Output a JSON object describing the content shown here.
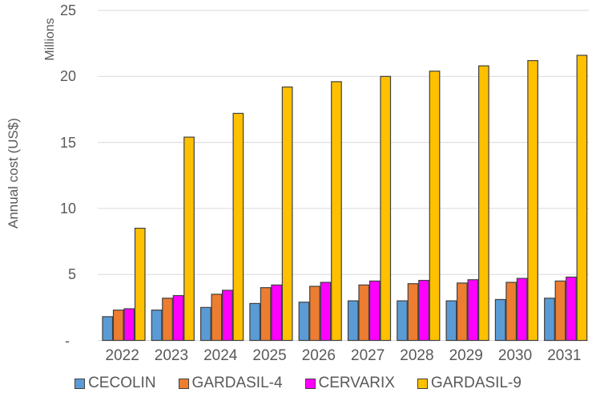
{
  "chart_data": {
    "type": "bar",
    "title": "",
    "ylabel": "Annual cost (US$)",
    "units_label": "Millions",
    "xlabel": "",
    "categories": [
      "2022",
      "2023",
      "2024",
      "2025",
      "2026",
      "2027",
      "2028",
      "2029",
      "2030",
      "2031"
    ],
    "series": [
      {
        "name": "CECOLIN",
        "color": "#5B9BD5",
        "values": [
          1.8,
          2.3,
          2.5,
          2.8,
          2.9,
          3.0,
          3.0,
          3.0,
          3.1,
          3.2
        ]
      },
      {
        "name": "GARDASIL-4",
        "color": "#ED7D31",
        "values": [
          2.3,
          3.2,
          3.5,
          4.0,
          4.1,
          4.2,
          4.3,
          4.35,
          4.4,
          4.5
        ]
      },
      {
        "name": "CERVARIX",
        "color": "#FF00FF",
        "values": [
          2.4,
          3.4,
          3.8,
          4.2,
          4.4,
          4.5,
          4.55,
          4.6,
          4.7,
          4.8
        ]
      },
      {
        "name": "GARDASIL-9",
        "color": "#FFC000",
        "values": [
          8.5,
          15.4,
          17.2,
          19.2,
          19.6,
          20.0,
          20.4,
          20.8,
          21.2,
          21.6
        ]
      }
    ],
    "y_axis": {
      "min": 0,
      "max": 25,
      "tick_interval": 5,
      "tick_labels": [
        "-",
        "5",
        "10",
        "15",
        "20",
        "25"
      ]
    },
    "grid": "horizontal",
    "legend_position": "bottom",
    "gridline_color": "#D9D9D9",
    "bar_outline_color": "#404040",
    "text_color": "#595959",
    "background_color": "#FFFFFF"
  }
}
